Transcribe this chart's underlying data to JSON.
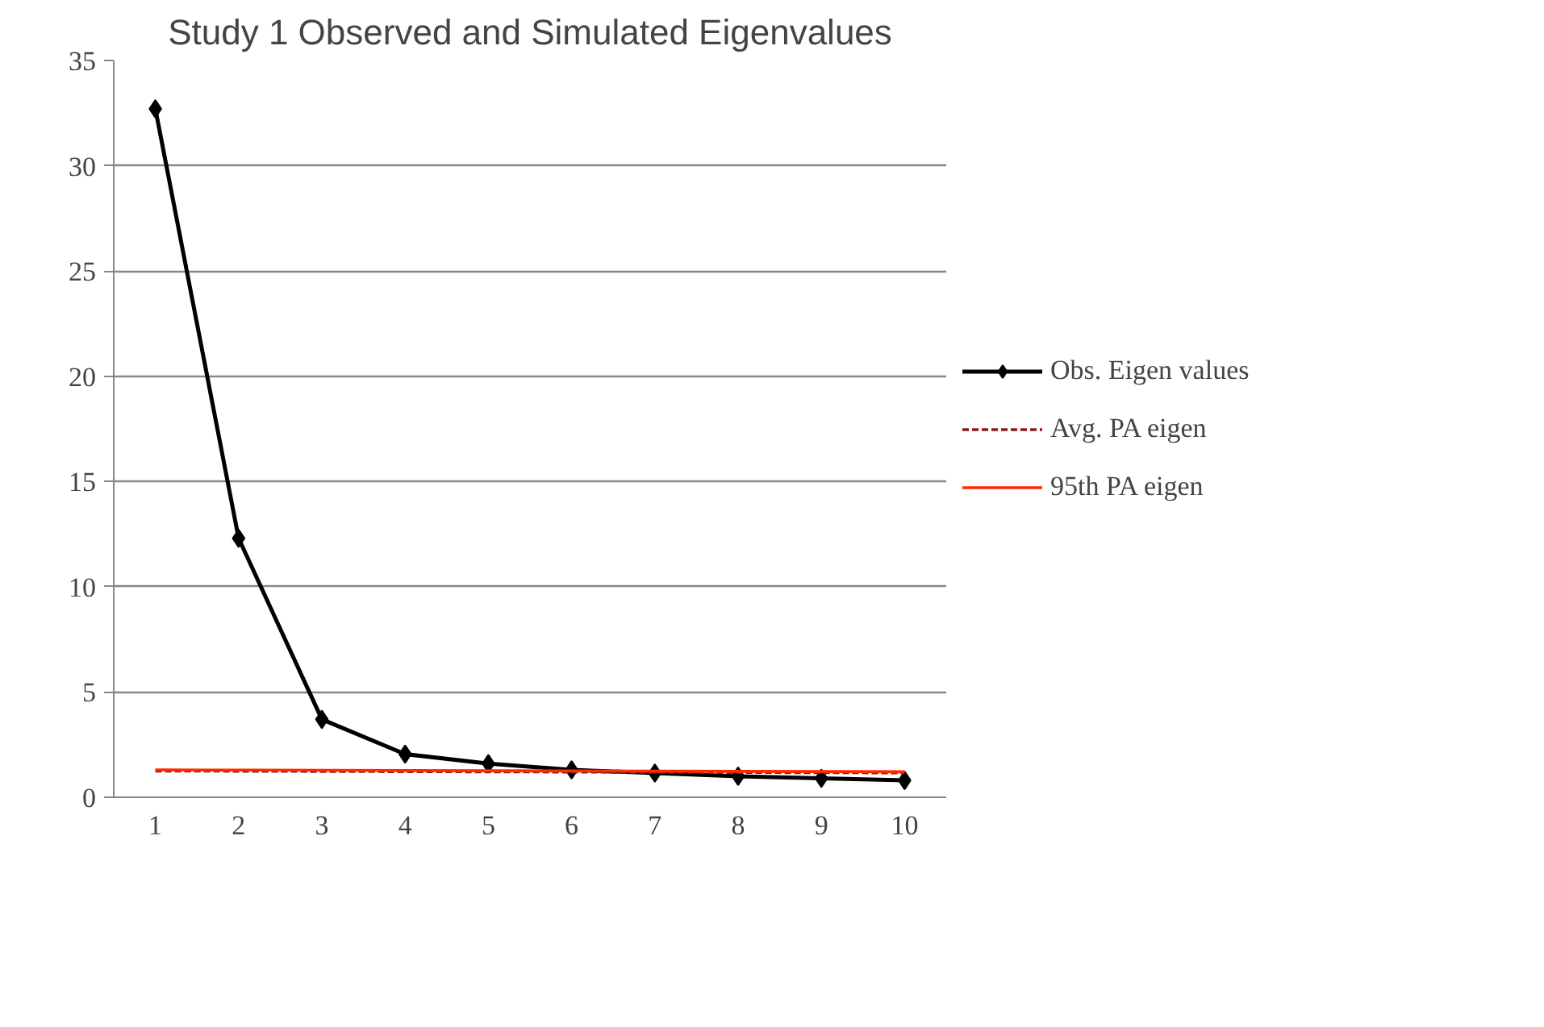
{
  "chart_data": {
    "type": "line",
    "title": "Study 1 Observed and Simulated Eigenvalues",
    "categories": [
      "1",
      "2",
      "3",
      "4",
      "5",
      "6",
      "7",
      "8",
      "9",
      "10"
    ],
    "series": [
      {
        "name": "Obs. Eigen values",
        "color": "#000000",
        "marker": "diamond",
        "line_style": "solid",
        "values": [
          32.7,
          12.3,
          3.7,
          2.05,
          1.6,
          1.3,
          1.15,
          1.0,
          0.9,
          0.8
        ]
      },
      {
        "name": "Avg. PA eigen",
        "color": "#8b1a1a",
        "marker": "none",
        "line_style": "dashed",
        "values": [
          1.25,
          1.24,
          1.23,
          1.22,
          1.21,
          1.2,
          1.19,
          1.18,
          1.17,
          1.16
        ]
      },
      {
        "name": "95th PA eigen",
        "color": "#ff2a00",
        "marker": "none",
        "line_style": "solid",
        "values": [
          1.3,
          1.29,
          1.28,
          1.27,
          1.26,
          1.25,
          1.24,
          1.23,
          1.22,
          1.21
        ]
      }
    ],
    "ylim": [
      0,
      35
    ],
    "yticks": [
      0,
      5,
      10,
      15,
      20,
      25,
      30,
      35
    ],
    "grid": "y",
    "legend": "right"
  }
}
